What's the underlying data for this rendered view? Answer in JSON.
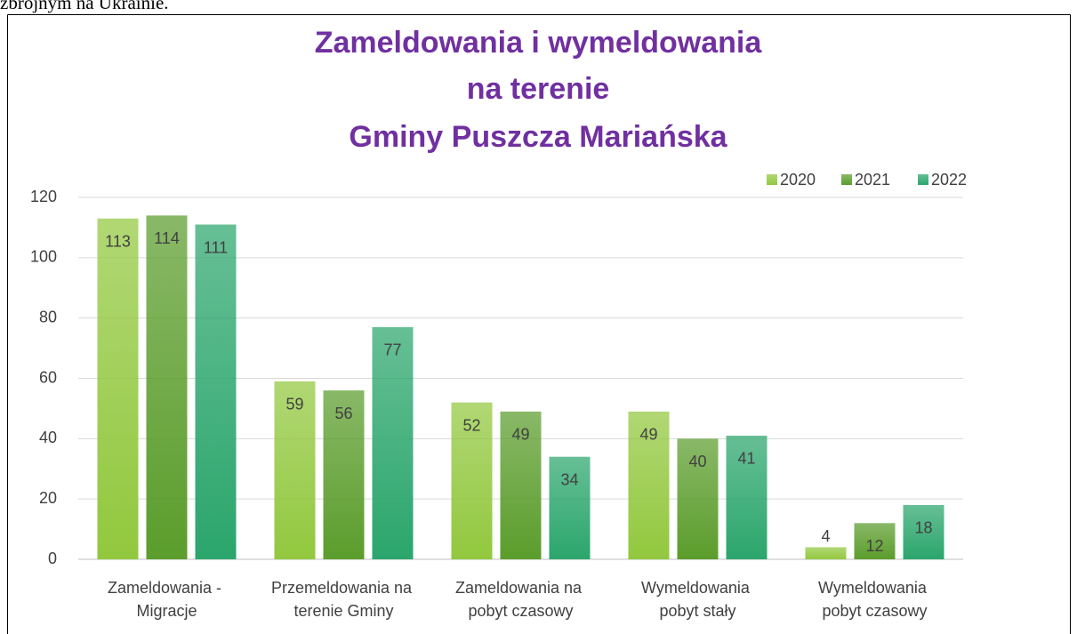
{
  "page_text": "zbrojnym na Ukrainie.",
  "chart_data": {
    "type": "bar",
    "title": [
      "Zameldowania i wymeldowania",
      "na terenie",
      "Gminy Puszcza Mariańska"
    ],
    "categories": [
      "Zameldowania - Migracje",
      "Przemeldowania na terenie Gminy",
      "Zameldowania na pobyt czasowy",
      "Wymeldowania pobyt stały",
      "Wymeldowania pobyt czasowy"
    ],
    "series": [
      {
        "name": "2020",
        "color": "#92c83e",
        "values": [
          113,
          59,
          52,
          49,
          4
        ]
      },
      {
        "name": "2021",
        "color": "#5b9d2c",
        "values": [
          114,
          56,
          49,
          40,
          12
        ]
      },
      {
        "name": "2022",
        "color": "#2ba66c",
        "values": [
          111,
          77,
          34,
          41,
          18
        ]
      }
    ],
    "ylim": [
      0,
      120
    ],
    "yticks": [
      0,
      20,
      40,
      60,
      80,
      100,
      120
    ],
    "grid": true,
    "legend": "top-right"
  }
}
